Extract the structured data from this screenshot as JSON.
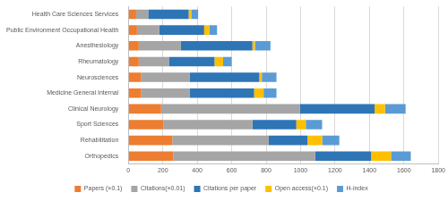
{
  "chart_data": {
    "type": "bar",
    "orientation": "horizontal",
    "stacked": true,
    "grid": true,
    "legend": "bottom",
    "categories": [
      "Health Care Sciences Services",
      "Public Environment Occupational Health",
      "Anesthesiology",
      "Rheumatology",
      "Neurosciences",
      "Medicine General Internal",
      "Clinical Neurology",
      "Sport Sciences",
      "Rehabilitation",
      "Orthopedics"
    ],
    "series": [
      {
        "name": "Papers (×0.1)",
        "color": "#ED7D31",
        "values": [
          45,
          50,
          60,
          60,
          75,
          75,
          190,
          205,
          255,
          260
        ]
      },
      {
        "name": "Citations(×0.01)",
        "color": "#A5A5A5",
        "values": [
          70,
          130,
          245,
          175,
          280,
          280,
          805,
          515,
          560,
          825
        ]
      },
      {
        "name": "Citations per paper",
        "color": "#2E75B6",
        "values": [
          235,
          260,
          415,
          265,
          405,
          375,
          435,
          255,
          225,
          325
        ]
      },
      {
        "name": "Open access(×0.1)",
        "color": "#FFC000",
        "values": [
          15,
          30,
          15,
          50,
          15,
          55,
          60,
          55,
          85,
          115
        ]
      },
      {
        "name": "H-index",
        "color": "#5B9BD5",
        "values": [
          40,
          45,
          90,
          50,
          85,
          75,
          120,
          95,
          100,
          115
        ]
      }
    ],
    "xlim": [
      0,
      1800
    ],
    "xticks": [
      0,
      200,
      400,
      600,
      800,
      1000,
      1200,
      1400,
      1600,
      1800
    ]
  }
}
